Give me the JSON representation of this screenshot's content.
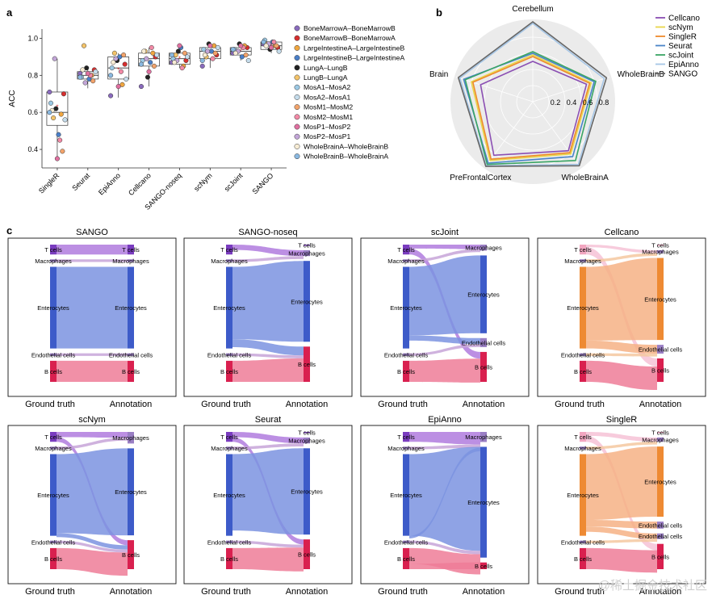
{
  "panel_letters": {
    "a": "a",
    "b": "b",
    "c": "c"
  },
  "watermark": "@稀土掘金技术社区",
  "chart_data": [
    {
      "id": "boxplot",
      "type": "box",
      "ylabel": "ACC",
      "ylim": [
        0.3,
        1.05
      ],
      "yticks": [
        0.4,
        0.6,
        0.8,
        1.0
      ],
      "ytick_labels": [
        "0.4",
        "0.6",
        "0.8",
        "1.0"
      ],
      "categories": [
        "SingleR",
        "Seurat",
        "EpiAnno",
        "Cellcano",
        "SANGO-noseq",
        "scNym",
        "scJoint",
        "SANGO"
      ],
      "boxes": [
        {
          "q1": 0.53,
          "median": 0.6,
          "q3": 0.71,
          "low": 0.35,
          "high": 0.89,
          "mean": 0.63
        },
        {
          "q1": 0.78,
          "median": 0.8,
          "q3": 0.82,
          "low": 0.73,
          "high": 0.84,
          "mean": 0.8
        },
        {
          "q1": 0.78,
          "median": 0.84,
          "q3": 0.9,
          "low": 0.68,
          "high": 0.92,
          "mean": 0.83
        },
        {
          "q1": 0.85,
          "median": 0.89,
          "q3": 0.92,
          "low": 0.74,
          "high": 0.95,
          "mean": 0.87
        },
        {
          "q1": 0.86,
          "median": 0.89,
          "q3": 0.92,
          "low": 0.84,
          "high": 0.96,
          "mean": 0.89
        },
        {
          "q1": 0.89,
          "median": 0.93,
          "q3": 0.95,
          "low": 0.84,
          "high": 0.97,
          "mean": 0.92
        },
        {
          "q1": 0.91,
          "median": 0.93,
          "q3": 0.95,
          "low": 0.88,
          "high": 0.97,
          "mean": 0.93
        },
        {
          "q1": 0.94,
          "median": 0.96,
          "q3": 0.98,
          "low": 0.92,
          "high": 0.99,
          "mean": 0.96
        }
      ],
      "points": [
        [
          0.71,
          0.7,
          0.59,
          0.48,
          0.62,
          0.57,
          0.65,
          0.56,
          0.39,
          0.45,
          0.35,
          0.89,
          0.61,
          0.6
        ],
        [
          0.81,
          0.83,
          0.8,
          0.78,
          0.84,
          0.96,
          0.79,
          0.82,
          0.77,
          0.8,
          0.81,
          0.76,
          0.83,
          0.79
        ],
        [
          0.69,
          0.86,
          0.75,
          0.9,
          0.88,
          0.92,
          0.84,
          0.78,
          0.91,
          0.82,
          0.74,
          0.89,
          0.87,
          0.8
        ],
        [
          0.74,
          0.9,
          0.92,
          0.87,
          0.79,
          0.93,
          0.88,
          0.91,
          0.85,
          0.95,
          0.82,
          0.89,
          0.93,
          0.86
        ],
        [
          0.87,
          0.88,
          0.85,
          0.95,
          0.93,
          0.91,
          0.89,
          0.9,
          0.92,
          0.84,
          0.96,
          0.88,
          0.87,
          0.91
        ],
        [
          0.85,
          0.91,
          0.96,
          0.93,
          0.97,
          0.9,
          0.94,
          0.95,
          0.92,
          0.89,
          0.96,
          0.93,
          0.91,
          0.88
        ],
        [
          0.92,
          0.95,
          0.96,
          0.9,
          0.97,
          0.93,
          0.94,
          0.88,
          0.91,
          0.95,
          0.96,
          0.93,
          0.92,
          0.94
        ],
        [
          0.97,
          0.95,
          0.96,
          0.98,
          0.94,
          0.97,
          0.99,
          0.93,
          0.96,
          0.98,
          0.95,
          0.97,
          0.96,
          0.98
        ]
      ],
      "legend": [
        {
          "label": "BoneMarrowA–BoneMarrowB",
          "color": "#8a6bbd"
        },
        {
          "label": "BoneMarrowB–BoneMarrowA",
          "color": "#d62f2f"
        },
        {
          "label": "LargeIntestineA–LargeIntestineB",
          "color": "#f0a640"
        },
        {
          "label": "LargeIntestineB–LargeIntestineA",
          "color": "#4a7fc8"
        },
        {
          "label": "LungA–LungB",
          "color": "#222222"
        },
        {
          "label": "LungB–LungA",
          "color": "#f4c46a"
        },
        {
          "label": "MosA1–MosA2",
          "color": "#9cc9e4"
        },
        {
          "label": "MosA2–MosA1",
          "color": "#c5dceb"
        },
        {
          "label": "MosM1–MosM2",
          "color": "#f2a36b"
        },
        {
          "label": "MosM2–MosM1",
          "color": "#f28aa6"
        },
        {
          "label": "MosP1–MosP2",
          "color": "#e070a0"
        },
        {
          "label": "MosP2–MosP1",
          "color": "#c3a6d8"
        },
        {
          "label": "WholeBrainA–WholeBrainB",
          "color": "#f7ecd4"
        },
        {
          "label": "WholeBrainB–WholeBrainA",
          "color": "#8ab8e0"
        }
      ]
    },
    {
      "id": "radar",
      "type": "radar",
      "axes": [
        "Cerebellum",
        "WholeBrainB",
        "WholeBrainA",
        "PreFrontalCortex",
        "Brain"
      ],
      "rlim": [
        0,
        1
      ],
      "rticks": [
        0.2,
        0.4,
        0.6,
        0.8
      ],
      "rtick_labels": [
        "0.2",
        "0.4",
        "0.6",
        "0.8"
      ],
      "series": [
        {
          "name": "Cellcano",
          "color": "#8b4fb3",
          "values": [
            0.5,
            0.7,
            0.75,
            0.82,
            0.68
          ]
        },
        {
          "name": "scNym",
          "color": "#e8d64a",
          "values": [
            0.58,
            0.76,
            0.8,
            0.9,
            0.8
          ]
        },
        {
          "name": "SingleR",
          "color": "#ef8a2c",
          "values": [
            0.56,
            0.74,
            0.78,
            0.88,
            0.78
          ]
        },
        {
          "name": "Seurat",
          "color": "#4a84c8",
          "values": [
            0.6,
            0.8,
            0.84,
            0.94,
            0.9
          ]
        },
        {
          "name": "scJoint",
          "color": "#3aa565",
          "values": [
            0.62,
            0.82,
            0.9,
            0.96,
            0.88
          ]
        },
        {
          "name": "EpiAnno",
          "color": "#a6c6e6",
          "values": [
            0.97,
            0.93,
            0.96,
            0.98,
            0.95
          ]
        },
        {
          "name": "SANGO",
          "color": "#666666",
          "values": [
            0.99,
            0.96,
            0.98,
            0.99,
            0.97
          ]
        }
      ]
    },
    {
      "id": "sankeys",
      "type": "sankey",
      "left_axis": "Ground truth",
      "right_axis": "Annotation",
      "left_nodes": [
        "T cells",
        "Macrophages",
        "Enterocytes",
        "Endothelial cells",
        "B cells"
      ],
      "panels": [
        {
          "title": "SANGO",
          "theme": "blue",
          "right_nodes": [
            [
              "T cells",
              0.075
            ],
            [
              "Macrophages",
              0.02
            ],
            [
              "Enterocytes",
              0.62
            ],
            [
              "Endothelial cells",
              0.02
            ],
            [
              "B cells",
              0.16
            ]
          ],
          "flows": [
            [
              0,
              0,
              0.075
            ],
            [
              1,
              1,
              0.02
            ],
            [
              2,
              2,
              0.62
            ],
            [
              3,
              3,
              0.02
            ],
            [
              4,
              4,
              0.16
            ]
          ]
        },
        {
          "title": "SANGO-noseq",
          "theme": "blue",
          "right_nodes": [
            [
              "T cells",
              0.0
            ],
            [
              "Macrophages",
              0.04
            ],
            [
              "Enterocytes",
              0.55
            ],
            [
              "B cells",
              0.24
            ]
          ],
          "flows": [
            [
              0,
              1,
              0.04
            ],
            [
              1,
              1,
              0.02
            ],
            [
              2,
              2,
              0.55
            ],
            [
              2,
              3,
              0.06
            ],
            [
              3,
              3,
              0.02
            ],
            [
              4,
              3,
              0.16
            ]
          ]
        },
        {
          "title": "scJoint",
          "theme": "blue",
          "right_nodes": [
            [
              "Macrophages",
              0.04
            ],
            [
              "Enterocytes",
              0.52
            ],
            [
              "Endothelial cells",
              0.06
            ],
            [
              "B cells",
              0.2
            ]
          ],
          "flows": [
            [
              0,
              0,
              0.03
            ],
            [
              0,
              3,
              0.045
            ],
            [
              1,
              0,
              0.02
            ],
            [
              2,
              1,
              0.52
            ],
            [
              2,
              2,
              0.04
            ],
            [
              3,
              2,
              0.02
            ],
            [
              4,
              3,
              0.16
            ]
          ]
        },
        {
          "title": "Cellcano",
          "theme": "orange",
          "right_nodes": [
            [
              "T cells",
              0.0
            ],
            [
              "Macrophages",
              0.02
            ],
            [
              "Enterocytes",
              0.56
            ],
            [
              "Endothelial cells",
              0.06
            ],
            [
              "B cells",
              0.16
            ]
          ],
          "flows": [
            [
              0,
              1,
              0.02
            ],
            [
              0,
              4,
              0.055
            ],
            [
              1,
              1,
              0.02
            ],
            [
              2,
              2,
              0.56
            ],
            [
              2,
              3,
              0.06
            ],
            [
              3,
              3,
              0.02
            ],
            [
              4,
              4,
              0.16
            ]
          ]
        },
        {
          "title": "scNym",
          "theme": "blue",
          "right_nodes": [
            [
              "Macrophages",
              0.08
            ],
            [
              "Enterocytes",
              0.6
            ],
            [
              "B cells",
              0.2
            ]
          ],
          "flows": [
            [
              0,
              0,
              0.04
            ],
            [
              0,
              2,
              0.035
            ],
            [
              1,
              0,
              0.02
            ],
            [
              2,
              1,
              0.6
            ],
            [
              2,
              2,
              0.03
            ],
            [
              3,
              2,
              0.02
            ],
            [
              4,
              2,
              0.16
            ]
          ]
        },
        {
          "title": "Seurat",
          "theme": "blue",
          "right_nodes": [
            [
              "T cells",
              0.0
            ],
            [
              "Macrophages",
              0.04
            ],
            [
              "Enterocytes",
              0.58
            ],
            [
              "B cells",
              0.2
            ]
          ],
          "flows": [
            [
              0,
              1,
              0.04
            ],
            [
              0,
              3,
              0.035
            ],
            [
              1,
              1,
              0.02
            ],
            [
              2,
              2,
              0.58
            ],
            [
              3,
              3,
              0.02
            ],
            [
              4,
              3,
              0.16
            ]
          ]
        },
        {
          "title": "EpiAnno",
          "theme": "blue",
          "right_nodes": [
            [
              "Macrophages",
              0.06
            ],
            [
              "Enterocytes",
              0.66
            ],
            [
              "B cells",
              0.04
            ]
          ],
          "flows": [
            [
              0,
              0,
              0.075
            ],
            [
              1,
              0,
              0.02
            ],
            [
              2,
              1,
              0.62
            ],
            [
              2,
              0,
              0.02
            ],
            [
              3,
              1,
              0.02
            ],
            [
              4,
              1,
              0.12
            ],
            [
              4,
              2,
              0.04
            ]
          ]
        },
        {
          "title": "SingleR",
          "theme": "orange",
          "right_nodes": [
            [
              "T cells",
              0.0
            ],
            [
              "Macrophages",
              0.03
            ],
            [
              "Enterocytes",
              0.5
            ],
            [
              "Endothelial cells",
              0.05
            ],
            [
              "Endothelial cells",
              0.04
            ],
            [
              "B cells",
              0.18
            ]
          ],
          "flows": [
            [
              0,
              1,
              0.03
            ],
            [
              0,
              5,
              0.045
            ],
            [
              1,
              1,
              0.02
            ],
            [
              2,
              2,
              0.5
            ],
            [
              2,
              3,
              0.05
            ],
            [
              2,
              4,
              0.04
            ],
            [
              3,
              4,
              0.02
            ],
            [
              4,
              5,
              0.16
            ]
          ]
        }
      ]
    }
  ]
}
